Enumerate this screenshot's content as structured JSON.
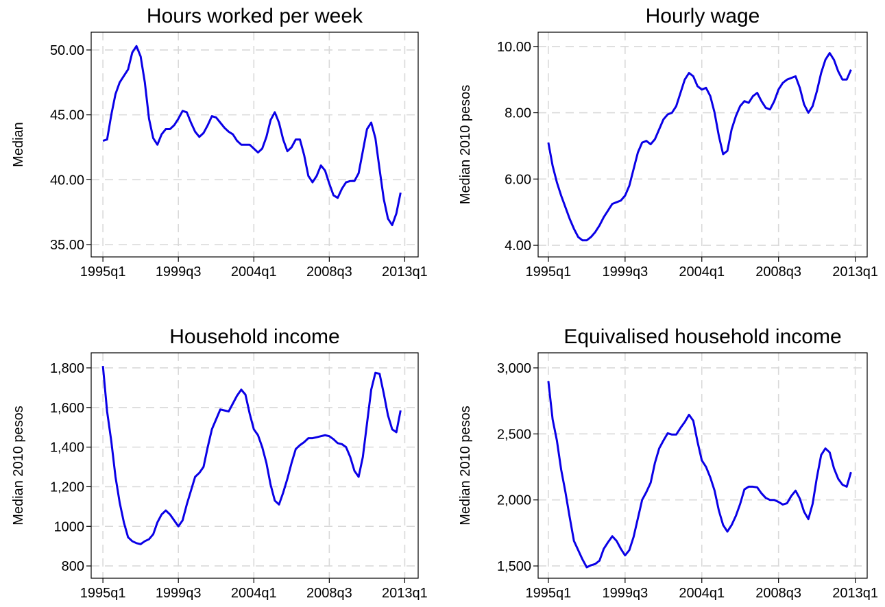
{
  "chart_data": [
    {
      "type": "line",
      "title": "Hours worked per week",
      "y_label": "Median",
      "color": "#0a00e6",
      "grid": true,
      "x": [
        1995,
        1995.25,
        1995.5,
        1995.75,
        1996,
        1996.25,
        1996.5,
        1996.75,
        1997,
        1997.25,
        1997.5,
        1997.75,
        1998,
        1998.25,
        1998.5,
        1998.75,
        1999,
        1999.25,
        1999.5,
        1999.75,
        2000,
        2000.25,
        2000.5,
        2000.75,
        2001,
        2001.25,
        2001.5,
        2001.75,
        2002,
        2002.25,
        2002.5,
        2002.75,
        2003,
        2003.25,
        2003.5,
        2003.75,
        2004,
        2004.25,
        2004.5,
        2004.75,
        2005,
        2005.25,
        2005.5,
        2005.75,
        2006,
        2006.25,
        2006.5,
        2006.75,
        2007,
        2007.25,
        2007.5,
        2007.75,
        2008,
        2008.25,
        2008.5,
        2008.75,
        2009,
        2009.25,
        2009.5,
        2009.75,
        2010,
        2010.25,
        2010.5,
        2010.75,
        2011,
        2011.25,
        2011.5,
        2011.75,
        2012,
        2012.25,
        2012.5,
        2012.75
      ],
      "values": [
        43.0,
        43.1,
        45.0,
        46.6,
        47.5,
        48.0,
        48.5,
        49.8,
        50.3,
        49.5,
        47.5,
        44.7,
        43.2,
        42.7,
        43.5,
        43.9,
        43.9,
        44.2,
        44.7,
        45.3,
        45.2,
        44.4,
        43.7,
        43.3,
        43.6,
        44.2,
        44.9,
        44.8,
        44.4,
        44.0,
        43.7,
        43.5,
        43.0,
        42.7,
        42.7,
        42.7,
        42.4,
        42.1,
        42.4,
        43.3,
        44.6,
        45.2,
        44.4,
        43.1,
        42.2,
        42.5,
        43.1,
        43.1,
        41.9,
        40.3,
        39.8,
        40.3,
        41.1,
        40.7,
        39.7,
        38.8,
        38.6,
        39.3,
        39.8,
        39.9,
        39.9,
        40.5,
        42.2,
        43.9,
        44.4,
        43.2,
        40.8,
        38.5,
        37.0,
        36.5,
        37.4,
        39.0
      ],
      "xlim": [
        1994.3,
        2013.8
      ],
      "ylim": [
        34.05,
        51.37
      ],
      "xticks": [
        {
          "value": 1995,
          "label": "1995q1"
        },
        {
          "value": 1999.5,
          "label": "1999q3"
        },
        {
          "value": 2004,
          "label": "2004q1"
        },
        {
          "value": 2008.5,
          "label": "2008q3"
        },
        {
          "value": 2013,
          "label": "2013q1"
        }
      ],
      "yticks": [
        {
          "value": 35,
          "label": "35.00"
        },
        {
          "value": 40,
          "label": "40.00"
        },
        {
          "value": 45,
          "label": "45.00"
        },
        {
          "value": 50,
          "label": "50.00"
        }
      ]
    },
    {
      "type": "line",
      "title": "Hourly wage",
      "y_label": "Median 2010 pesos",
      "color": "#0a00e6",
      "grid": true,
      "x": [
        1995,
        1995.25,
        1995.5,
        1995.75,
        1996,
        1996.25,
        1996.5,
        1996.75,
        1997,
        1997.25,
        1997.5,
        1997.75,
        1998,
        1998.25,
        1998.5,
        1998.75,
        1999,
        1999.25,
        1999.5,
        1999.75,
        2000,
        2000.25,
        2000.5,
        2000.75,
        2001,
        2001.25,
        2001.5,
        2001.75,
        2002,
        2002.25,
        2002.5,
        2002.75,
        2003,
        2003.25,
        2003.5,
        2003.75,
        2004,
        2004.25,
        2004.5,
        2004.75,
        2005,
        2005.25,
        2005.5,
        2005.75,
        2006,
        2006.25,
        2006.5,
        2006.75,
        2007,
        2007.25,
        2007.5,
        2007.75,
        2008,
        2008.25,
        2008.5,
        2008.75,
        2009,
        2009.25,
        2009.5,
        2009.75,
        2010,
        2010.25,
        2010.5,
        2010.75,
        2011,
        2011.25,
        2011.5,
        2011.75,
        2012,
        2012.25,
        2012.5,
        2012.75
      ],
      "values": [
        7.1,
        6.4,
        5.9,
        5.5,
        5.15,
        4.8,
        4.5,
        4.25,
        4.15,
        4.15,
        4.25,
        4.4,
        4.6,
        4.85,
        5.05,
        5.25,
        5.3,
        5.35,
        5.5,
        5.8,
        6.3,
        6.8,
        7.1,
        7.15,
        7.05,
        7.2,
        7.5,
        7.8,
        7.95,
        8.0,
        8.2,
        8.6,
        9.0,
        9.2,
        9.1,
        8.8,
        8.7,
        8.75,
        8.5,
        8.0,
        7.3,
        6.75,
        6.85,
        7.5,
        7.9,
        8.2,
        8.35,
        8.3,
        8.5,
        8.6,
        8.35,
        8.15,
        8.1,
        8.35,
        8.7,
        8.9,
        9.0,
        9.05,
        9.1,
        8.75,
        8.25,
        8.0,
        8.2,
        8.65,
        9.2,
        9.6,
        9.8,
        9.6,
        9.25,
        9.0,
        9.0,
        9.3
      ],
      "xlim": [
        1994.4,
        2013.7
      ],
      "ylim": [
        3.65,
        10.43
      ],
      "xticks": [
        {
          "value": 1995,
          "label": "1995q1"
        },
        {
          "value": 1999.5,
          "label": "1999q3"
        },
        {
          "value": 2004,
          "label": "2004q1"
        },
        {
          "value": 2008.5,
          "label": "2008q3"
        },
        {
          "value": 2013,
          "label": "2013q1"
        }
      ],
      "yticks": [
        {
          "value": 4,
          "label": "4.00"
        },
        {
          "value": 6,
          "label": "6.00"
        },
        {
          "value": 8,
          "label": "8.00"
        },
        {
          "value": 10,
          "label": "10.00"
        }
      ]
    },
    {
      "type": "line",
      "title": "Household income",
      "y_label": "Median 2010 pesos",
      "color": "#0a00e6",
      "grid": true,
      "x": [
        1995,
        1995.25,
        1995.5,
        1995.75,
        1996,
        1996.25,
        1996.5,
        1996.75,
        1997,
        1997.25,
        1997.5,
        1997.75,
        1998,
        1998.25,
        1998.5,
        1998.75,
        1999,
        1999.25,
        1999.5,
        1999.75,
        2000,
        2000.25,
        2000.5,
        2000.75,
        2001,
        2001.25,
        2001.5,
        2001.75,
        2002,
        2002.25,
        2002.5,
        2002.75,
        2003,
        2003.25,
        2003.5,
        2003.75,
        2004,
        2004.25,
        2004.5,
        2004.75,
        2005,
        2005.25,
        2005.5,
        2005.75,
        2006,
        2006.25,
        2006.5,
        2006.75,
        2007,
        2007.25,
        2007.5,
        2007.75,
        2008,
        2008.25,
        2008.5,
        2008.75,
        2009,
        2009.25,
        2009.5,
        2009.75,
        2010,
        2010.25,
        2010.5,
        2010.75,
        2011,
        2011.25,
        2011.5,
        2011.75,
        2012,
        2012.25,
        2012.5,
        2012.75
      ],
      "values": [
        1810,
        1580,
        1430,
        1250,
        1120,
        1020,
        945,
        925,
        915,
        910,
        925,
        935,
        960,
        1020,
        1060,
        1080,
        1060,
        1030,
        1000,
        1030,
        1110,
        1180,
        1250,
        1270,
        1300,
        1400,
        1490,
        1540,
        1590,
        1585,
        1580,
        1620,
        1660,
        1690,
        1665,
        1570,
        1490,
        1460,
        1400,
        1320,
        1210,
        1130,
        1110,
        1170,
        1240,
        1320,
        1390,
        1410,
        1425,
        1445,
        1445,
        1450,
        1455,
        1460,
        1455,
        1440,
        1420,
        1415,
        1400,
        1350,
        1280,
        1250,
        1350,
        1520,
        1690,
        1775,
        1770,
        1670,
        1560,
        1490,
        1475,
        1585
      ],
      "xlim": [
        1994.3,
        2013.8
      ],
      "ylim": [
        738,
        1876
      ],
      "xticks": [
        {
          "value": 1995,
          "label": "1995q1"
        },
        {
          "value": 1999.5,
          "label": "1999q3"
        },
        {
          "value": 2004,
          "label": "2004q1"
        },
        {
          "value": 2008.5,
          "label": "2008q3"
        },
        {
          "value": 2013,
          "label": "2013q1"
        }
      ],
      "yticks": [
        800,
        1000,
        {
          "value": 1200,
          "label": "1,200"
        },
        {
          "value": 1400,
          "label": "1,400"
        },
        {
          "value": 1600,
          "label": "1,600"
        },
        {
          "value": 1800,
          "label": "1,800"
        }
      ]
    },
    {
      "type": "line",
      "title": "Equivalised household income",
      "y_label": "Median 2010 pesos",
      "color": "#0a00e6",
      "grid": true,
      "x": [
        1995,
        1995.25,
        1995.5,
        1995.75,
        1996,
        1996.25,
        1996.5,
        1996.75,
        1997,
        1997.25,
        1997.5,
        1997.75,
        1998,
        1998.25,
        1998.5,
        1998.75,
        1999,
        1999.25,
        1999.5,
        1999.75,
        2000,
        2000.25,
        2000.5,
        2000.75,
        2001,
        2001.25,
        2001.5,
        2001.75,
        2002,
        2002.25,
        2002.5,
        2002.75,
        2003,
        2003.25,
        2003.5,
        2003.75,
        2004,
        2004.25,
        2004.5,
        2004.75,
        2005,
        2005.25,
        2005.5,
        2005.75,
        2006,
        2006.25,
        2006.5,
        2006.75,
        2007,
        2007.25,
        2007.5,
        2007.75,
        2008,
        2008.25,
        2008.5,
        2008.75,
        2009,
        2009.25,
        2009.5,
        2009.75,
        2010,
        2010.25,
        2010.5,
        2010.75,
        2011,
        2011.25,
        2011.5,
        2011.75,
        2012,
        2012.25,
        2012.5,
        2012.75
      ],
      "values": [
        2900,
        2610,
        2450,
        2230,
        2060,
        1870,
        1690,
        1620,
        1550,
        1490,
        1505,
        1515,
        1540,
        1630,
        1680,
        1725,
        1690,
        1630,
        1580,
        1620,
        1720,
        1860,
        2000,
        2060,
        2130,
        2280,
        2390,
        2450,
        2505,
        2495,
        2495,
        2545,
        2590,
        2645,
        2600,
        2440,
        2300,
        2250,
        2170,
        2070,
        1920,
        1810,
        1760,
        1810,
        1880,
        1970,
        2080,
        2100,
        2100,
        2095,
        2050,
        2015,
        2000,
        2000,
        1985,
        1965,
        1975,
        2030,
        2070,
        2010,
        1910,
        1855,
        1970,
        2170,
        2340,
        2390,
        2360,
        2240,
        2160,
        2115,
        2100,
        2210
      ],
      "xlim": [
        1994.4,
        2013.7
      ],
      "ylim": [
        1407,
        3114
      ],
      "xticks": [
        {
          "value": 1995,
          "label": "1995q1"
        },
        {
          "value": 1999.5,
          "label": "1999q3"
        },
        {
          "value": 2004,
          "label": "2004q1"
        },
        {
          "value": 2008.5,
          "label": "2008q3"
        },
        {
          "value": 2013,
          "label": "2013q1"
        }
      ],
      "yticks": [
        {
          "value": 1500,
          "label": "1,500"
        },
        {
          "value": 2000,
          "label": "2,000"
        },
        {
          "value": 2500,
          "label": "2,500"
        },
        {
          "value": 3000,
          "label": "3,000"
        }
      ]
    }
  ]
}
